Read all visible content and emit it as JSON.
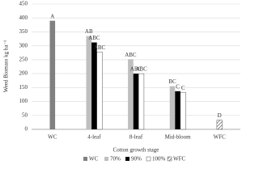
{
  "chart_data": {
    "type": "bar",
    "y_label": "Weed Biomass kg ha⁻¹",
    "x_label": "Cotton growth stage",
    "categories": [
      "WC",
      "4-leaf",
      "8-leaf",
      "Mid-bloom",
      "WFC"
    ],
    "series": [
      {
        "name": "WC",
        "color": "#808080",
        "values": [
          390,
          null,
          null,
          null,
          null
        ],
        "letters": [
          "A",
          null,
          null,
          null,
          null
        ]
      },
      {
        "name": "70%",
        "color": "#bfbfbf",
        "values": [
          null,
          335,
          252,
          155,
          null
        ],
        "letters": [
          null,
          "AB",
          "ABC",
          "BC",
          null
        ]
      },
      {
        "name": "90%",
        "color": "#000000",
        "values": [
          null,
          312,
          200,
          137,
          null
        ],
        "letters": [
          null,
          "ABC",
          "ABC",
          "C",
          null
        ]
      },
      {
        "name": "100%",
        "color": "#ffffff",
        "values": [
          null,
          278,
          200,
          133,
          null
        ],
        "letters": [
          null,
          "ABC",
          "ABC",
          "C",
          null
        ]
      },
      {
        "name": "WFC",
        "color": "#404040",
        "hatch": true,
        "values": [
          null,
          null,
          null,
          null,
          33
        ],
        "letters": [
          null,
          null,
          null,
          null,
          "D"
        ]
      }
    ],
    "ylim": [
      0,
      450
    ],
    "yticks": [
      0,
      50,
      100,
      150,
      200,
      250,
      300,
      350,
      400,
      450
    ],
    "grid": true
  }
}
